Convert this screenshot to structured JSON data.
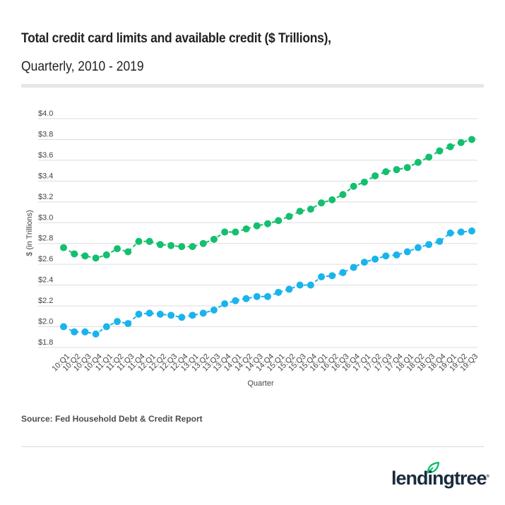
{
  "header": {
    "title": "Total credit card limits and available credit ($ Trillions),",
    "subtitle": "Quarterly, 2010 - 2019"
  },
  "footer": {
    "source": "Source: Fed Household Debt & Credit Report",
    "logo_text": "lendingtree",
    "logo_icon": "leaf-icon",
    "brand_color": "#14BF6E"
  },
  "chart_data": {
    "type": "line",
    "title": "Total credit card limits and available credit ($ Trillions),",
    "subtitle": "Quarterly, 2010 - 2019",
    "xlabel": "Quarter",
    "ylabel": "$ (in Trillions)",
    "ylim": [
      1.8,
      4.0
    ],
    "yticks": [
      1.8,
      2.0,
      2.2,
      2.4,
      2.6,
      2.8,
      3.0,
      3.2,
      3.4,
      3.6,
      3.8,
      4.0
    ],
    "ytick_labels": [
      "$1.8",
      "$2.0",
      "$2.2",
      "$2.4",
      "$2.6",
      "$2.8",
      "$3.0",
      "$3.2",
      "$3.4",
      "$3.6",
      "$3.8",
      "$4.0"
    ],
    "grid": true,
    "legend": "none",
    "x": [
      "10:Q1",
      "10:Q2",
      "10:Q3",
      "10:Q4",
      "11:Q1",
      "11:Q2",
      "11:Q3",
      "11:Q4",
      "12:Q1",
      "12:Q2",
      "12:Q3",
      "12:Q4",
      "13:Q1",
      "13:Q2",
      "13:Q3",
      "13:Q4",
      "14:Q1",
      "14:Q2",
      "14:Q3",
      "14:Q4",
      "15:Q1",
      "15:Q2",
      "15:Q3",
      "15:Q4",
      "16:Q1",
      "16:Q2",
      "16:Q3",
      "16:Q4",
      "17:Q1",
      "17:Q2",
      "17:Q3",
      "17:Q4",
      "18:Q1",
      "18:Q2",
      "18:Q3",
      "18:Q4",
      "19:Q1",
      "19:Q2",
      "19:Q3"
    ],
    "series": [
      {
        "name": "Total credit card limits",
        "color": "#14BF6E",
        "values": [
          2.76,
          2.7,
          2.68,
          2.66,
          2.69,
          2.75,
          2.72,
          2.82,
          2.82,
          2.79,
          2.78,
          2.77,
          2.77,
          2.8,
          2.84,
          2.91,
          2.91,
          2.94,
          2.97,
          2.99,
          3.02,
          3.06,
          3.11,
          3.13,
          3.19,
          3.22,
          3.27,
          3.35,
          3.39,
          3.45,
          3.49,
          3.51,
          3.53,
          3.58,
          3.63,
          3.69,
          3.73,
          3.77,
          3.8
        ]
      },
      {
        "name": "Available credit",
        "color": "#1AB4EC",
        "values": [
          2.0,
          1.95,
          1.95,
          1.93,
          2.0,
          2.05,
          2.03,
          2.12,
          2.13,
          2.12,
          2.11,
          2.09,
          2.11,
          2.13,
          2.16,
          2.22,
          2.25,
          2.27,
          2.29,
          2.29,
          2.33,
          2.36,
          2.4,
          2.4,
          2.48,
          2.49,
          2.52,
          2.57,
          2.62,
          2.65,
          2.68,
          2.69,
          2.72,
          2.76,
          2.79,
          2.82,
          2.9,
          2.91,
          2.92
        ]
      }
    ]
  }
}
